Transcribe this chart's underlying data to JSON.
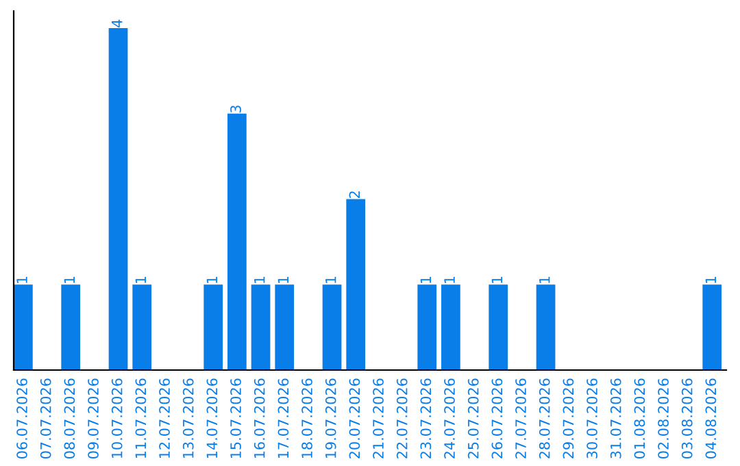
{
  "chart_data": {
    "type": "bar",
    "categories": [
      "06.07.2026",
      "07.07.2026",
      "08.07.2026",
      "09.07.2026",
      "10.07.2026",
      "11.07.2026",
      "12.07.2026",
      "13.07.2026",
      "14.07.2026",
      "15.07.2026",
      "16.07.2026",
      "17.07.2026",
      "18.07.2026",
      "19.07.2026",
      "20.07.2026",
      "21.07.2026",
      "22.07.2026",
      "23.07.2026",
      "24.07.2026",
      "25.07.2026",
      "26.07.2026",
      "27.07.2026",
      "28.07.2026",
      "29.07.2026",
      "30.07.2026",
      "31.07.2026",
      "01.08.2026",
      "02.08.2026",
      "03.08.2026",
      "04.08.2026"
    ],
    "values": [
      1,
      0,
      1,
      0,
      4,
      1,
      0,
      0,
      1,
      3,
      1,
      1,
      0,
      1,
      2,
      0,
      0,
      1,
      1,
      0,
      1,
      0,
      1,
      0,
      0,
      0,
      0,
      0,
      0,
      1
    ],
    "value_labels": [
      "1",
      null,
      "1",
      null,
      "4",
      "1",
      null,
      null,
      "1",
      "3",
      "1",
      "1",
      null,
      "1",
      "2",
      null,
      null,
      "1",
      "1",
      null,
      "1",
      null,
      "1",
      null,
      null,
      null,
      null,
      null,
      null,
      "1"
    ],
    "color": "#0a7ee8",
    "grid": false,
    "legend": false
  }
}
